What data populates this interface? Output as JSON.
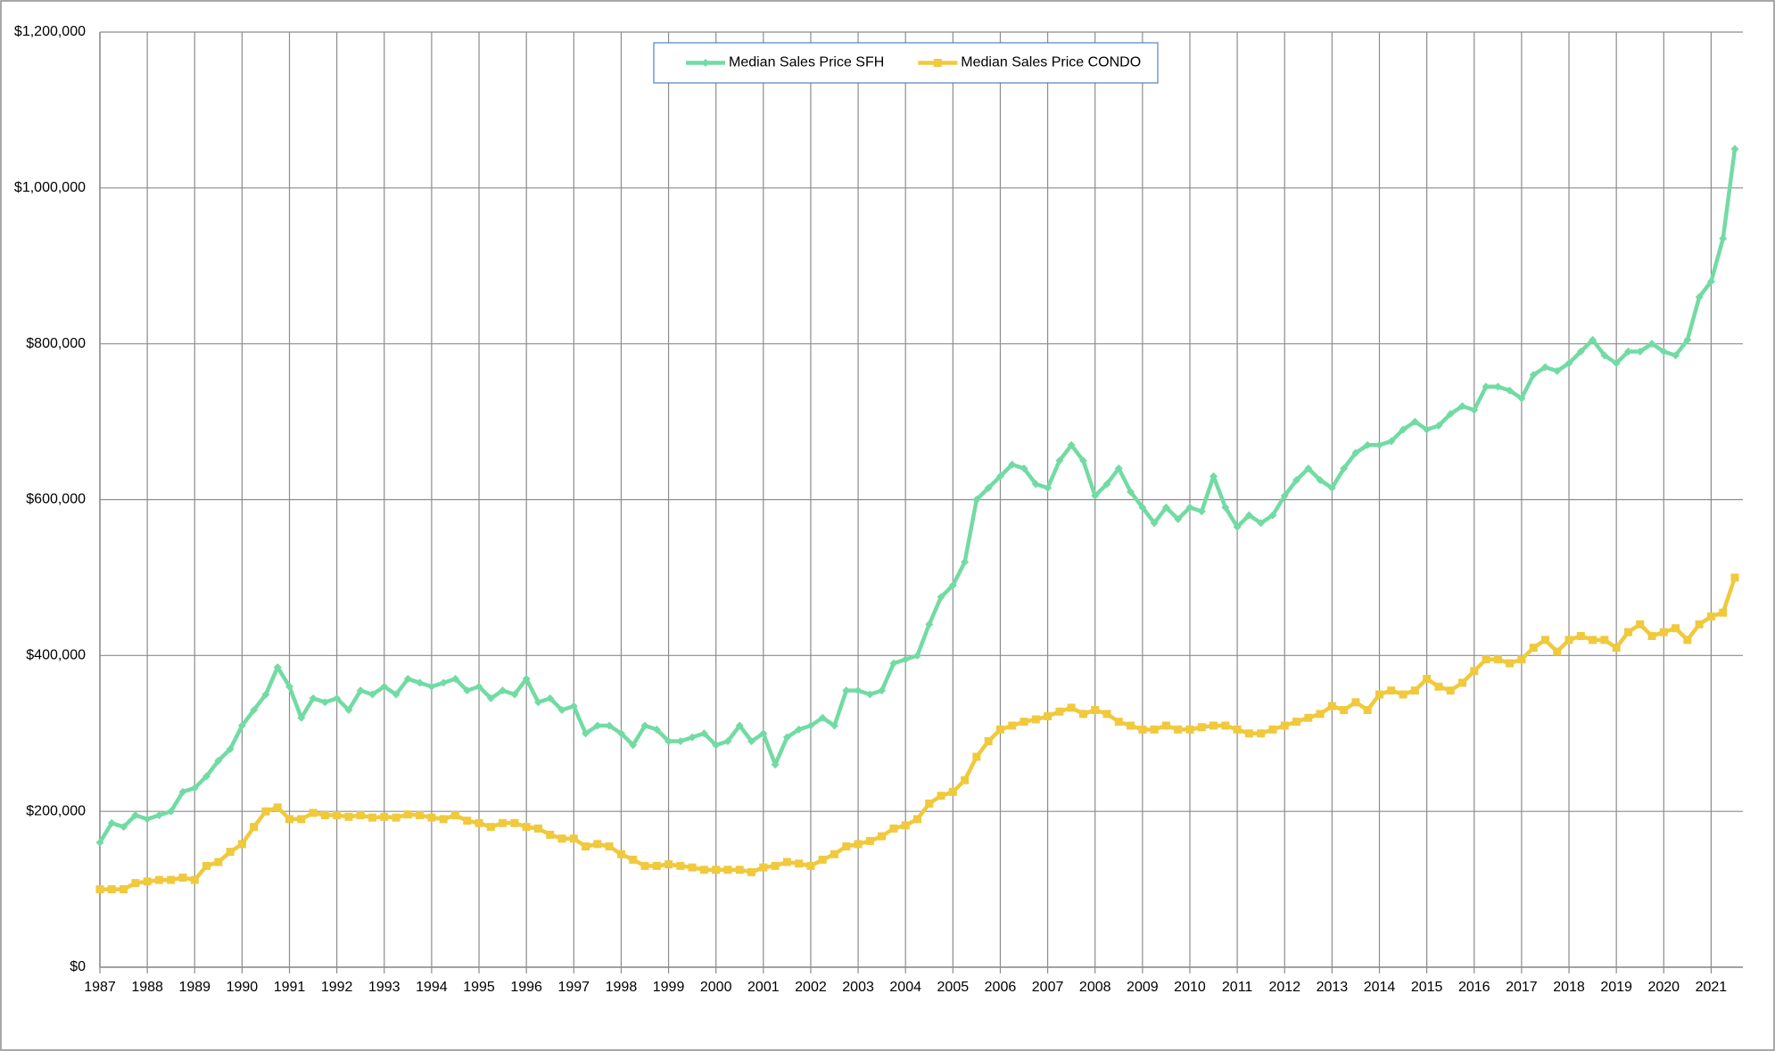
{
  "chart_data": {
    "type": "line",
    "x": [
      1987,
      1987.25,
      1987.5,
      1987.75,
      1988,
      1988.25,
      1988.5,
      1988.75,
      1989,
      1989.25,
      1989.5,
      1989.75,
      1990,
      1990.25,
      1990.5,
      1990.75,
      1991,
      1991.25,
      1991.5,
      1991.75,
      1992,
      1992.25,
      1992.5,
      1992.75,
      1993,
      1993.25,
      1993.5,
      1993.75,
      1994,
      1994.25,
      1994.5,
      1994.75,
      1995,
      1995.25,
      1995.5,
      1995.75,
      1996,
      1996.25,
      1996.5,
      1996.75,
      1997,
      1997.25,
      1997.5,
      1997.75,
      1998,
      1998.25,
      1998.5,
      1998.75,
      1999,
      1999.25,
      1999.5,
      1999.75,
      2000,
      2000.25,
      2000.5,
      2000.75,
      2001,
      2001.25,
      2001.5,
      2001.75,
      2002,
      2002.25,
      2002.5,
      2002.75,
      2003,
      2003.25,
      2003.5,
      2003.75,
      2004,
      2004.25,
      2004.5,
      2004.75,
      2005,
      2005.25,
      2005.5,
      2005.75,
      2006,
      2006.25,
      2006.5,
      2006.75,
      2007,
      2007.25,
      2007.5,
      2007.75,
      2008,
      2008.25,
      2008.5,
      2008.75,
      2009,
      2009.25,
      2009.5,
      2009.75,
      2010,
      2010.25,
      2010.5,
      2010.75,
      2011,
      2011.25,
      2011.5,
      2011.75,
      2012,
      2012.25,
      2012.5,
      2012.75,
      2013,
      2013.25,
      2013.5,
      2013.75,
      2014,
      2014.25,
      2014.5,
      2014.75,
      2015,
      2015.25,
      2015.5,
      2015.75,
      2016,
      2016.25,
      2016.5,
      2016.75,
      2017,
      2017.25,
      2017.5,
      2017.75,
      2018,
      2018.25,
      2018.5,
      2018.75,
      2019,
      2019.25,
      2019.5,
      2019.75,
      2020,
      2020.25,
      2020.5,
      2020.75,
      2021,
      2021.25,
      2021.5
    ],
    "series": [
      {
        "name": "Median Sales Price SFH",
        "color": "#72dba3",
        "marker": "diamond",
        "values": [
          160000,
          185000,
          180000,
          195000,
          190000,
          195000,
          200000,
          225000,
          230000,
          245000,
          265000,
          280000,
          310000,
          330000,
          350000,
          385000,
          360000,
          320000,
          345000,
          340000,
          345000,
          330000,
          355000,
          350000,
          360000,
          350000,
          370000,
          365000,
          360000,
          365000,
          370000,
          355000,
          360000,
          345000,
          355000,
          350000,
          370000,
          340000,
          345000,
          330000,
          335000,
          300000,
          310000,
          310000,
          300000,
          285000,
          310000,
          305000,
          290000,
          290000,
          295000,
          300000,
          285000,
          290000,
          310000,
          290000,
          300000,
          260000,
          295000,
          305000,
          310000,
          320000,
          310000,
          355000,
          355000,
          350000,
          355000,
          390000,
          395000,
          400000,
          440000,
          475000,
          490000,
          520000,
          600000,
          615000,
          630000,
          645000,
          640000,
          620000,
          615000,
          650000,
          670000,
          650000,
          605000,
          620000,
          640000,
          610000,
          590000,
          570000,
          590000,
          575000,
          590000,
          585000,
          630000,
          590000,
          565000,
          580000,
          570000,
          580000,
          605000,
          625000,
          640000,
          625000,
          615000,
          640000,
          660000,
          670000,
          670000,
          675000,
          690000,
          700000,
          690000,
          695000,
          710000,
          720000,
          715000,
          745000,
          745000,
          740000,
          730000,
          760000,
          770000,
          765000,
          775000,
          790000,
          805000,
          785000,
          775000,
          790000,
          790000,
          800000,
          790000,
          785000,
          805000,
          860000,
          880000,
          935000,
          1050000
        ]
      },
      {
        "name": "Median Sales Price CONDO",
        "color": "#f0c93c",
        "marker": "square",
        "values": [
          100000,
          100000,
          100000,
          108000,
          110000,
          112000,
          112000,
          115000,
          112000,
          130000,
          135000,
          148000,
          158000,
          180000,
          200000,
          205000,
          190000,
          190000,
          198000,
          195000,
          195000,
          193000,
          195000,
          192000,
          193000,
          192000,
          196000,
          195000,
          192000,
          190000,
          195000,
          188000,
          185000,
          180000,
          185000,
          185000,
          180000,
          178000,
          170000,
          165000,
          165000,
          155000,
          158000,
          155000,
          145000,
          138000,
          130000,
          130000,
          132000,
          130000,
          128000,
          125000,
          125000,
          125000,
          125000,
          122000,
          128000,
          130000,
          135000,
          133000,
          130000,
          138000,
          145000,
          155000,
          158000,
          162000,
          168000,
          178000,
          182000,
          190000,
          210000,
          220000,
          225000,
          240000,
          270000,
          290000,
          305000,
          310000,
          315000,
          318000,
          322000,
          328000,
          333000,
          325000,
          330000,
          325000,
          315000,
          310000,
          305000,
          305000,
          310000,
          305000,
          305000,
          308000,
          310000,
          310000,
          305000,
          300000,
          300000,
          305000,
          310000,
          315000,
          320000,
          325000,
          335000,
          330000,
          340000,
          330000,
          350000,
          355000,
          350000,
          355000,
          370000,
          360000,
          355000,
          365000,
          380000,
          395000,
          395000,
          390000,
          395000,
          410000,
          420000,
          405000,
          420000,
          425000,
          420000,
          420000,
          410000,
          430000,
          440000,
          425000,
          430000,
          435000,
          420000,
          440000,
          450000,
          455000,
          500000
        ]
      }
    ],
    "xlim": [
      1987,
      2021.67
    ],
    "xticks": [
      1987,
      1988,
      1989,
      1990,
      1991,
      1992,
      1993,
      1994,
      1995,
      1996,
      1997,
      1998,
      1999,
      2000,
      2001,
      2002,
      2003,
      2004,
      2005,
      2006,
      2007,
      2008,
      2009,
      2010,
      2011,
      2012,
      2013,
      2014,
      2015,
      2016,
      2017,
      2018,
      2019,
      2020,
      2021
    ],
    "ylim": [
      0,
      1200000
    ],
    "yticks": [
      {
        "value": 0,
        "label": "$0"
      },
      {
        "value": 200000,
        "label": "$200,000"
      },
      {
        "value": 400000,
        "label": "$400,000"
      },
      {
        "value": 600000,
        "label": "$600,000"
      },
      {
        "value": 800000,
        "label": "$800,000"
      },
      {
        "value": 1000000,
        "label": "$1,000,000"
      },
      {
        "value": 1200000,
        "label": "$1,200,000"
      }
    ],
    "grid": true,
    "legend": "top"
  }
}
